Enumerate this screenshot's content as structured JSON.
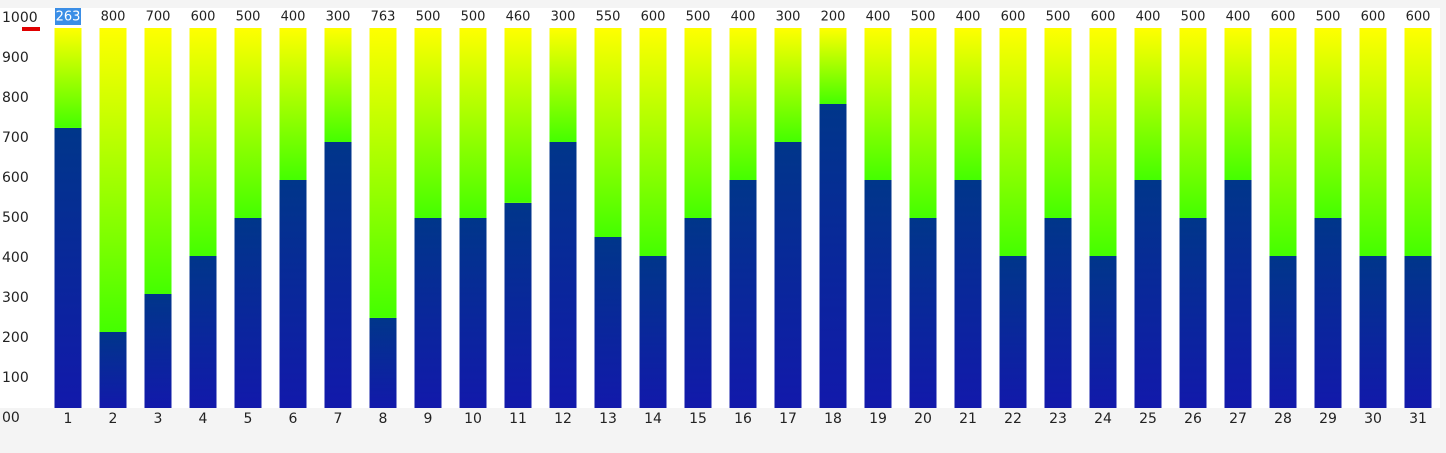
{
  "chart_data": {
    "type": "stacked-bar",
    "categories": [
      "1",
      "2",
      "3",
      "4",
      "5",
      "6",
      "7",
      "8",
      "9",
      "10",
      "11",
      "12",
      "13",
      "14",
      "15",
      "16",
      "17",
      "18",
      "19",
      "20",
      "21",
      "22",
      "23",
      "24",
      "25",
      "26",
      "27",
      "28",
      "29",
      "30",
      "31"
    ],
    "series": [
      {
        "values": [
          737,
          200,
          300,
          400,
          500,
          600,
          700,
          237,
          500,
          500,
          540,
          700,
          450,
          400,
          500,
          600,
          700,
          800,
          600,
          500,
          600,
          400,
          500,
          400,
          600,
          500,
          600,
          400,
          500,
          400,
          400
        ]
      },
      {
        "values": [
          263,
          800,
          700,
          600,
          500,
          400,
          300,
          763,
          500,
          500,
          460,
          300,
          550,
          600,
          500,
          400,
          300,
          200,
          400,
          500,
          400,
          600,
          500,
          600,
          400,
          500,
          400,
          600,
          500,
          600,
          600
        ]
      }
    ],
    "ylim": [
      0,
      1000
    ],
    "yticks": [
      {
        "value": 0,
        "label": "00"
      },
      100,
      200,
      300,
      400,
      500,
      600,
      700,
      800,
      900,
      1000
    ]
  }
}
